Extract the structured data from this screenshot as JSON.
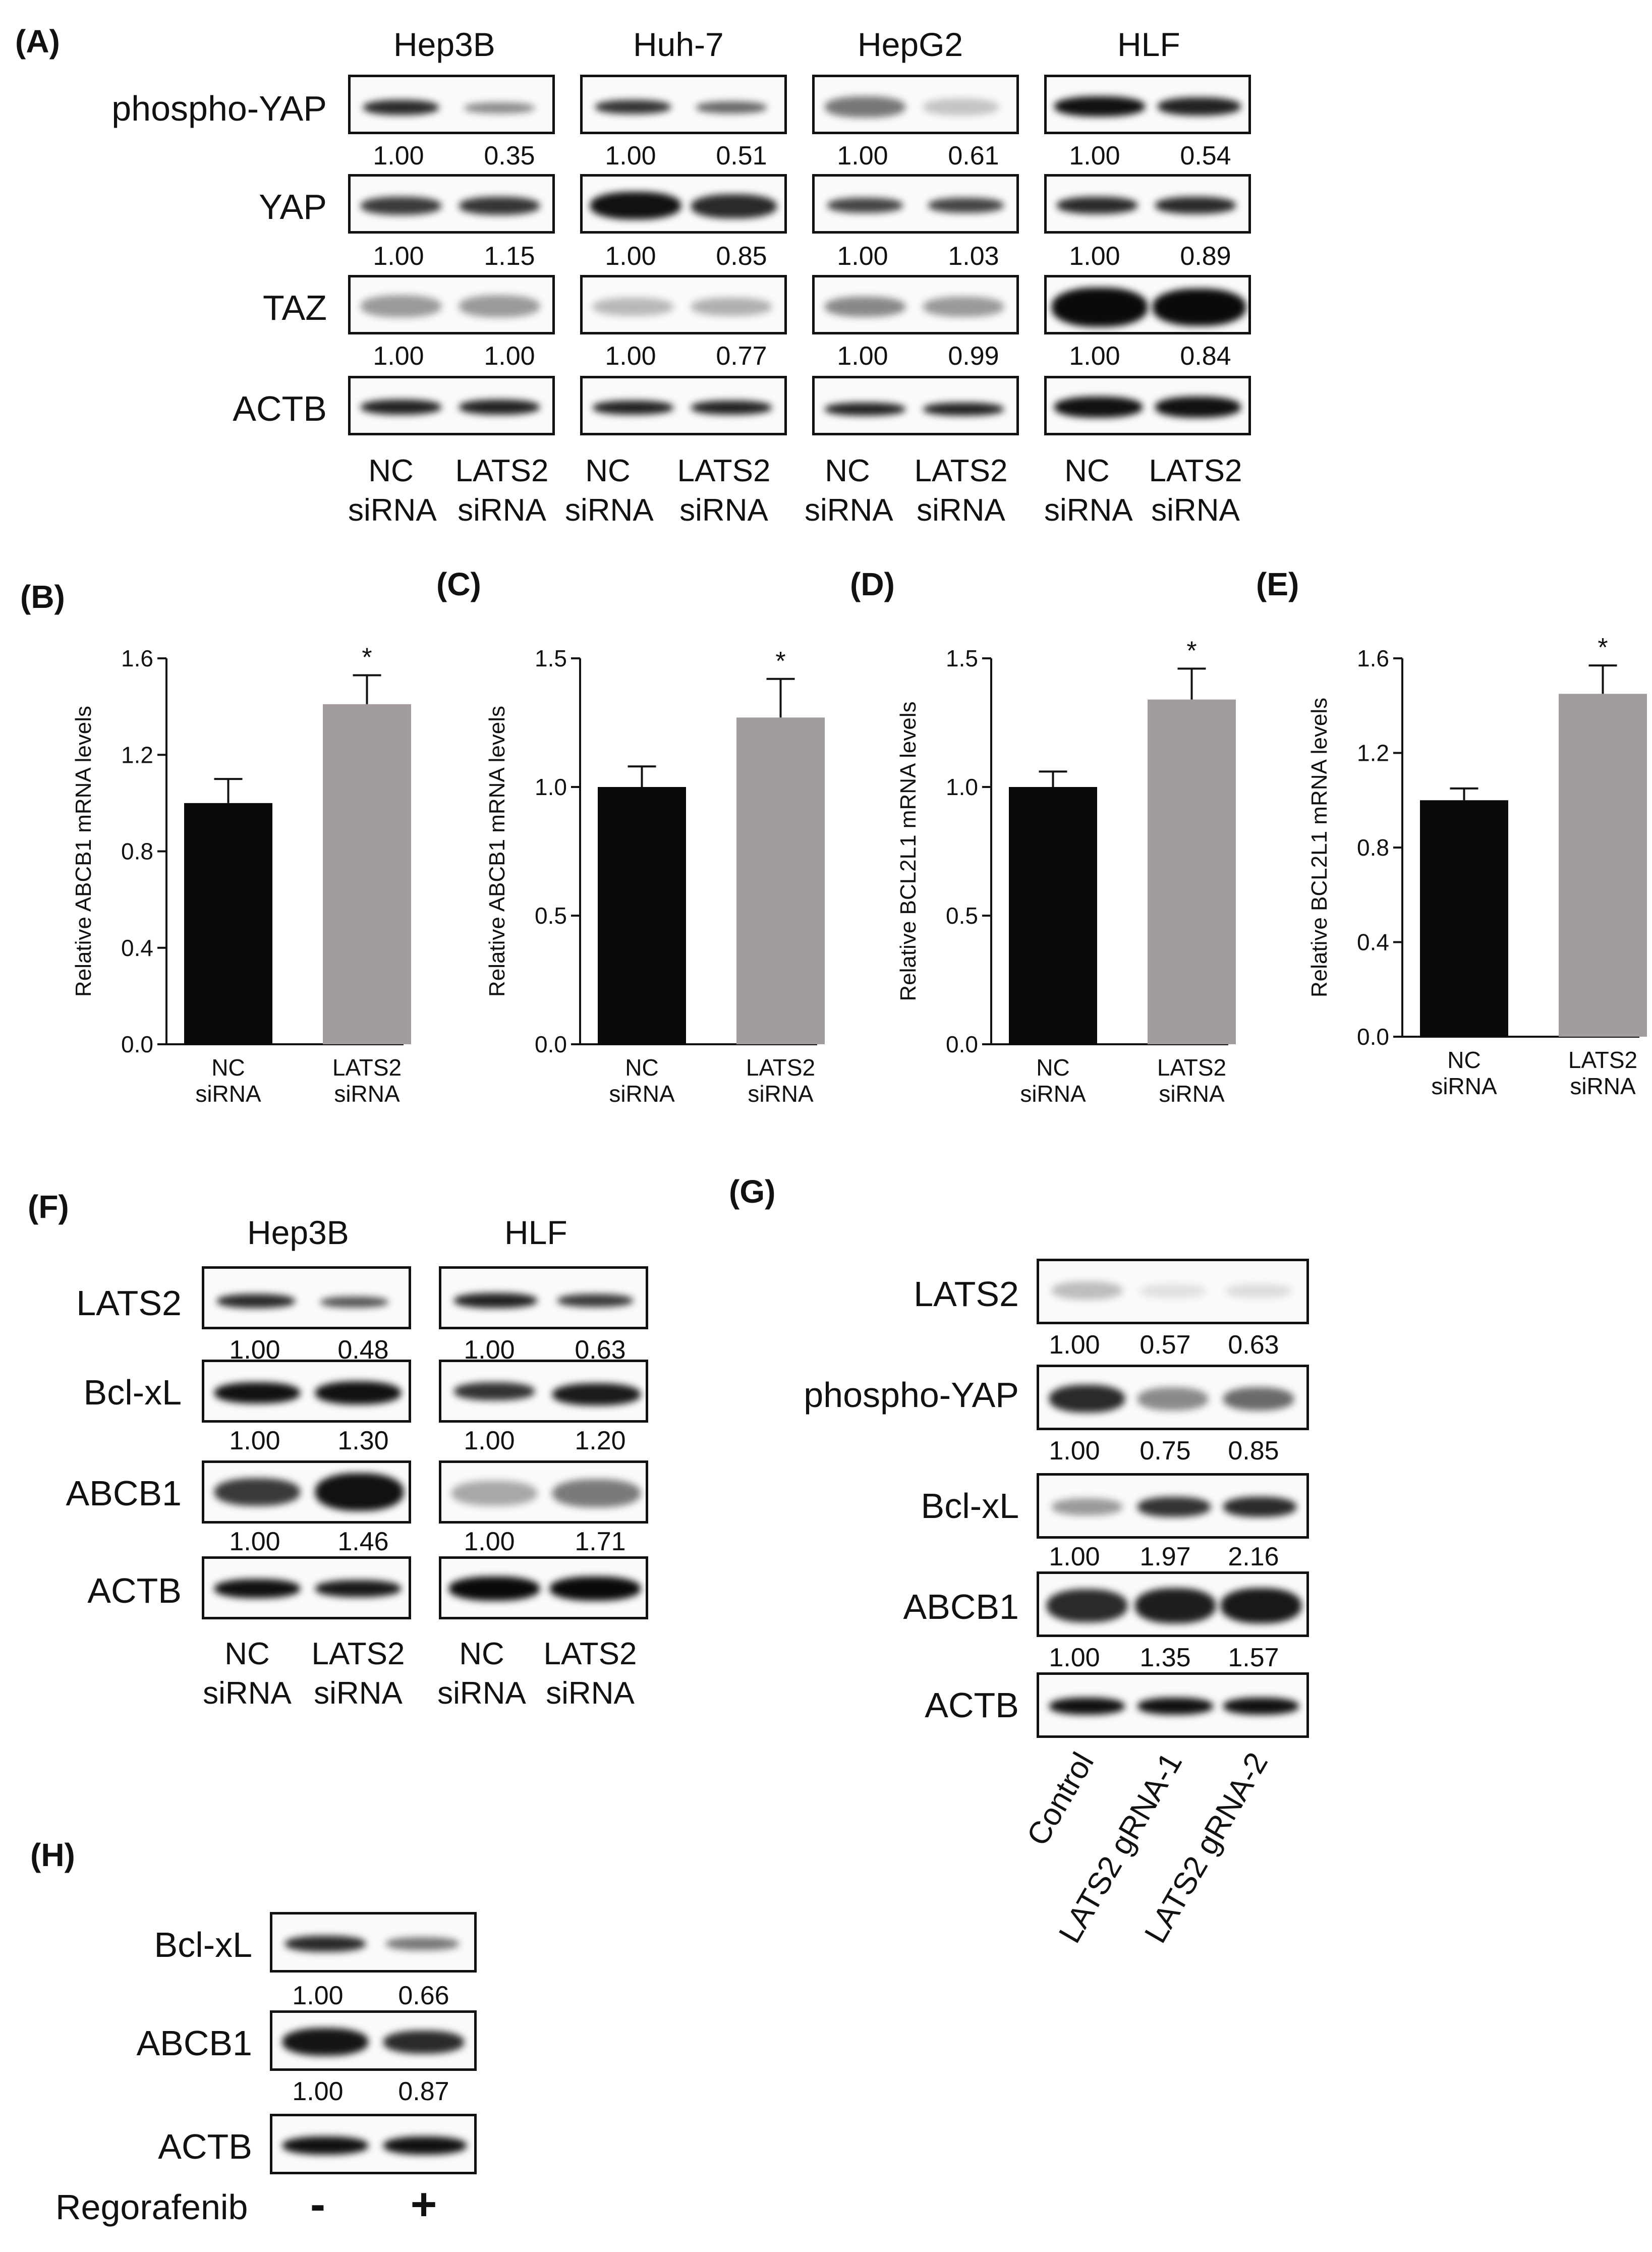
{
  "panel_A": {
    "label": "(A)",
    "cell_lines": [
      "Hep3B",
      "Huh-7",
      "HepG2",
      "HLF"
    ],
    "proteins": [
      "phospho-YAP",
      "YAP",
      "TAZ",
      "ACTB"
    ],
    "lanes": [
      "NC\nsiRNA",
      "LATS2\nsiRNA"
    ],
    "values": {
      "phospho-YAP": [
        [
          "1.00",
          "0.35"
        ],
        [
          "1.00",
          "0.51"
        ],
        [
          "1.00",
          "0.61"
        ],
        [
          "1.00",
          "0.54"
        ]
      ],
      "YAP": [
        [
          "1.00",
          "1.15"
        ],
        [
          "1.00",
          "0.85"
        ],
        [
          "1.00",
          "1.03"
        ],
        [
          "1.00",
          "0.89"
        ]
      ],
      "TAZ": [
        [
          "1.00",
          "1.00"
        ],
        [
          "1.00",
          "0.77"
        ],
        [
          "1.00",
          "0.99"
        ],
        [
          "1.00",
          "0.84"
        ]
      ]
    }
  },
  "panel_F": {
    "label": "(F)",
    "cell_lines": [
      "Hep3B",
      "HLF"
    ],
    "proteins": [
      "LATS2",
      "Bcl-xL",
      "ABCB1",
      "ACTB"
    ],
    "lanes": [
      "NC\nsiRNA",
      "LATS2\nsiRNA"
    ],
    "values": {
      "LATS2": [
        [
          "1.00",
          "0.48"
        ],
        [
          "1.00",
          "0.63"
        ]
      ],
      "Bcl-xL": [
        [
          "1.00",
          "1.30"
        ],
        [
          "1.00",
          "1.20"
        ]
      ],
      "ABCB1": [
        [
          "1.00",
          "1.46"
        ],
        [
          "1.00",
          "1.71"
        ]
      ]
    }
  },
  "panel_G": {
    "label": "(G)",
    "proteins": [
      "LATS2",
      "phospho-YAP",
      "Bcl-xL",
      "ABCB1",
      "ACTB"
    ],
    "lanes": [
      "Control",
      "LATS2 gRNA-1",
      "LATS2 gRNA-2"
    ],
    "values": {
      "LATS2": [
        "1.00",
        "0.57",
        "0.63"
      ],
      "phospho-YAP": [
        "1.00",
        "0.75",
        "0.85"
      ],
      "Bcl-xL": [
        "1.00",
        "1.97",
        "2.16"
      ],
      "ABCB1": [
        "1.00",
        "1.35",
        "1.57"
      ]
    }
  },
  "panel_H": {
    "label": "(H)",
    "proteins": [
      "Bcl-xL",
      "ABCB1",
      "ACTB"
    ],
    "treatment_label": "Regorafenib",
    "lanes": [
      "-",
      "+"
    ],
    "values": {
      "Bcl-xL": [
        "1.00",
        "0.66"
      ],
      "ABCB1": [
        "1.00",
        "0.87"
      ]
    }
  },
  "chart_data": [
    {
      "panel": "(B)",
      "type": "bar",
      "categories": [
        "NC\nsiRNA",
        "LATS2\nsiRNA"
      ],
      "values": [
        1.0,
        1.41
      ],
      "error": [
        0.1,
        0.12
      ],
      "significance": [
        "",
        "*"
      ],
      "ylabel": "Relative ABCB1 mRNA levels",
      "ylim": [
        0,
        1.6
      ],
      "yticks": [
        "0.0",
        "0.4",
        "0.8",
        "1.2",
        "1.6"
      ],
      "colors": [
        "#0a0a0a",
        "#a29c9e"
      ]
    },
    {
      "panel": "(C)",
      "type": "bar",
      "categories": [
        "NC\nsiRNA",
        "LATS2\nsiRNA"
      ],
      "values": [
        1.0,
        1.27
      ],
      "error": [
        0.08,
        0.15
      ],
      "significance": [
        "",
        "*"
      ],
      "ylabel": "Relative ABCB1 mRNA levels",
      "ylim": [
        0,
        1.5
      ],
      "yticks": [
        "0.0",
        "0.5",
        "1.0",
        "1.5"
      ],
      "colors": [
        "#0a0a0a",
        "#a29c9e"
      ]
    },
    {
      "panel": "(D)",
      "type": "bar",
      "categories": [
        "NC\nsiRNA",
        "LATS2\nsiRNA"
      ],
      "values": [
        1.0,
        1.34
      ],
      "error": [
        0.06,
        0.12
      ],
      "significance": [
        "",
        "*"
      ],
      "ylabel": "Relative BCL2L1 mRNA levels",
      "ylim": [
        0,
        1.5
      ],
      "yticks": [
        "0.0",
        "0.5",
        "1.0",
        "1.5"
      ],
      "colors": [
        "#0a0a0a",
        "#a29c9e"
      ]
    },
    {
      "panel": "(E)",
      "type": "bar",
      "categories": [
        "NC\nsiRNA",
        "LATS2\nsiRNA"
      ],
      "values": [
        1.0,
        1.45
      ],
      "error": [
        0.05,
        0.12
      ],
      "significance": [
        "",
        "*"
      ],
      "ylabel": "Relative BCL2L1 mRNA levels",
      "ylim": [
        0,
        1.6
      ],
      "yticks": [
        "0.0",
        "0.4",
        "0.8",
        "1.2",
        "1.6"
      ],
      "colors": [
        "#0a0a0a",
        "#a29c9e"
      ]
    }
  ]
}
